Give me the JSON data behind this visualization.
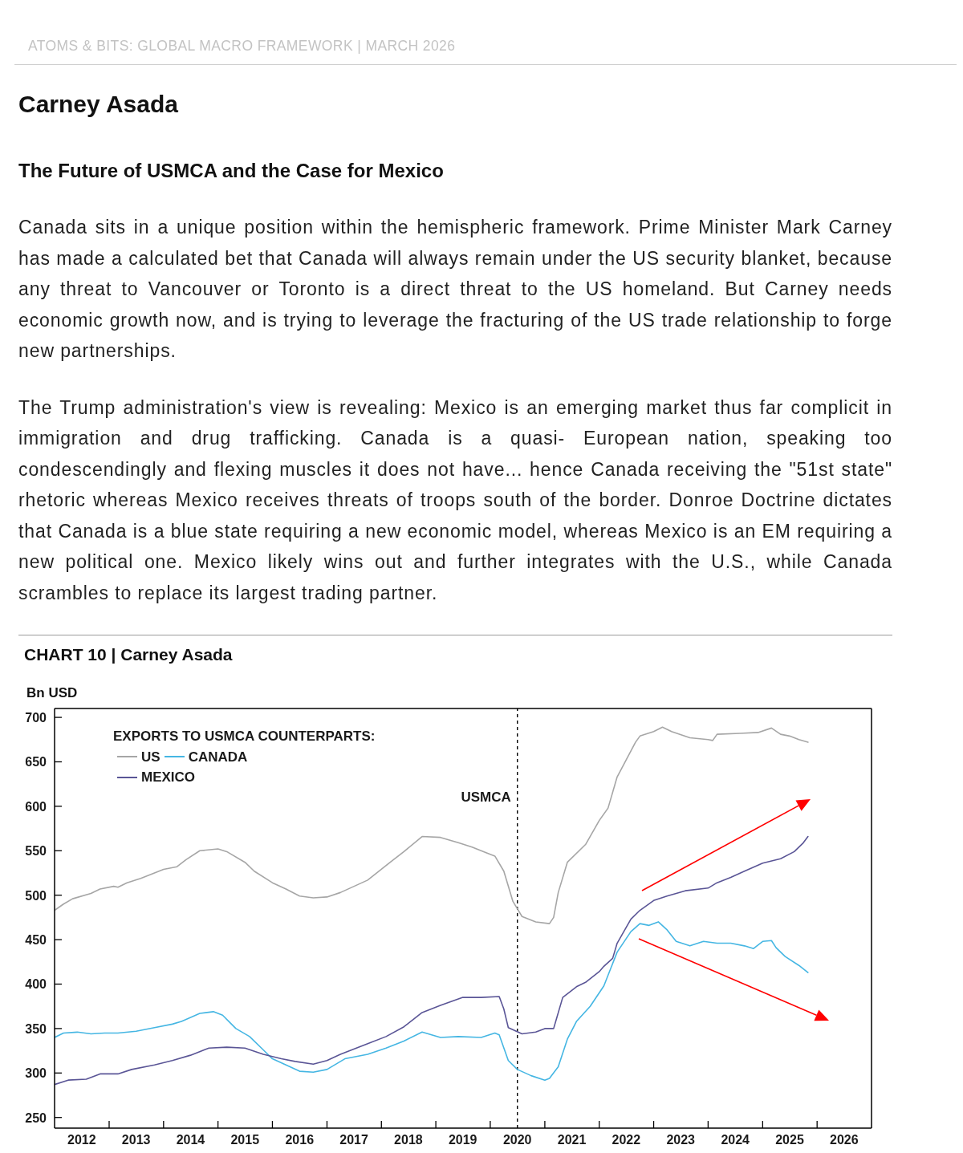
{
  "chart_data": {
    "type": "line",
    "title": "Carney Asada",
    "subtitle": "The Future of USMCA and the Case for Mexico",
    "annotations": [
      "ATOMS & BITS: GLOBAL MACRO FRAMEWORK | MARCH 2026",
      "Canada sits in a unique position within the hemispheric framework. Prime Minister Mark Carney has made a calculated bet that Canada will always remain under the US security blanket, because any threat to Vancouver or Toronto is a direct threat to the US homeland. But Carney needs economic growth now, and is trying to leverage the fracturing of the US trade relationship to forge new partnerships.",
      "The Trump administration's view is revealing: Mexico is an emerging market thus far complicit in immigration and drug trafficking. Canada is a quasi- European nation, speaking too condescendingly and flexing muscles it does not have... hence Canada receiving the \"51st state\" rhetoric whereas Mexico receives threats of troops south of the border. Donroe Doctrine dictates that Canada is a blue state requiring a new economic model, whereas Mexico is an EM requiring a new political one. Mexico likely wins out and further integrates with the U.S., while Canada scrambles to replace its largest trading partner.",
      "CHART 10 | Carney Asada"
    ],
    "ylabel": "Bn USD",
    "legend_title": "EXPORTS TO USMCA COUNTERPARTS:",
    "legend": "top left",
    "xlim": [
      "2012-01",
      "2027-01"
    ],
    "xticks": [
      {
        "value": "2012-07",
        "label": "2012"
      },
      {
        "value": "2013-01",
        "label": null
      },
      {
        "value": "2013-07",
        "label": "2013"
      },
      {
        "value": "2014-01",
        "label": null
      },
      {
        "value": "2014-07",
        "label": "2014"
      },
      {
        "value": "2015-01",
        "label": null
      },
      {
        "value": "2015-07",
        "label": "2015"
      },
      {
        "value": "2016-01",
        "label": null
      },
      {
        "value": "2016-07",
        "label": "2016"
      },
      {
        "value": "2017-01",
        "label": null
      },
      {
        "value": "2017-07",
        "label": "2017"
      },
      {
        "value": "2018-01",
        "label": null
      },
      {
        "value": "2018-07",
        "label": "2018"
      },
      {
        "value": "2019-01",
        "label": null
      },
      {
        "value": "2019-07",
        "label": "2019"
      },
      {
        "value": "2020-01",
        "label": null
      },
      {
        "value": "2020-07",
        "label": "2020"
      },
      {
        "value": "2021-01",
        "label": null
      },
      {
        "value": "2021-07",
        "label": "2021"
      },
      {
        "value": "2022-01",
        "label": null
      },
      {
        "value": "2022-07",
        "label": "2022"
      },
      {
        "value": "2023-01",
        "label": null
      },
      {
        "value": "2023-07",
        "label": "2023"
      },
      {
        "value": "2024-01",
        "label": null
      },
      {
        "value": "2024-07",
        "label": "2024"
      },
      {
        "value": "2025-01",
        "label": null
      },
      {
        "value": "2025-07",
        "label": "2025"
      },
      {
        "value": "2026-01",
        "label": null
      },
      {
        "value": "2026-07",
        "label": "2026"
      }
    ],
    "ylim": [
      238,
      710
    ],
    "yticks": [
      250,
      300,
      350,
      400,
      450,
      500,
      550,
      600,
      650,
      700
    ],
    "ref_lines": [
      {
        "axis": "x",
        "value": "2020-07",
        "label": "USMCA",
        "color": "#000000",
        "line_style": "dashed"
      }
    ],
    "series": [
      {
        "name": "US",
        "color": "#a6a6a6",
        "x": [
          "2012-01",
          "2012-03",
          "2012-05",
          "2012-09",
          "2012-11",
          "2013-02",
          "2013-03",
          "2013-05",
          "2013-08",
          "2013-11",
          "2014-01",
          "2014-04",
          "2014-06",
          "2014-09",
          "2015-01",
          "2015-03",
          "2015-07",
          "2015-09",
          "2016-01",
          "2016-04",
          "2016-07",
          "2016-10",
          "2017-01",
          "2017-04",
          "2017-10",
          "2018-03",
          "2018-06",
          "2018-10",
          "2019-02",
          "2019-06",
          "2019-09",
          "2019-12",
          "2020-02",
          "2020-04",
          "2020-06",
          "2020-08",
          "2020-11",
          "2021-02",
          "2021-03",
          "2021-04",
          "2021-06",
          "2021-10",
          "2022-01",
          "2022-03",
          "2022-05",
          "2022-09",
          "2022-10",
          "2023-01",
          "2023-03",
          "2023-05",
          "2023-09",
          "2024-01",
          "2024-02",
          "2024-03",
          "2024-08",
          "2024-12",
          "2025-03",
          "2025-05",
          "2025-07",
          "2025-09",
          "2025-11"
        ],
        "values": [
          483,
          490,
          496,
          502,
          507,
          510,
          509,
          514,
          519,
          525,
          529,
          532,
          540,
          550,
          552,
          549,
          537,
          527,
          514,
          507,
          499,
          497,
          498,
          503,
          517,
          537,
          549,
          566,
          565,
          559,
          554,
          548,
          544,
          527,
          493,
          476,
          470,
          468,
          475,
          503,
          537,
          557,
          584,
          598,
          633,
          672,
          679,
          684,
          689,
          684,
          677,
          675,
          674,
          681,
          682,
          683,
          688,
          681,
          679,
          675,
          672
        ]
      },
      {
        "name": "CANADA",
        "color": "#45b6e3",
        "x": [
          "2012-01",
          "2012-03",
          "2012-06",
          "2012-09",
          "2012-12",
          "2013-03",
          "2013-07",
          "2013-11",
          "2014-03",
          "2014-05",
          "2014-09",
          "2014-12",
          "2015-02",
          "2015-05",
          "2015-08",
          "2015-11",
          "2016-01",
          "2016-04",
          "2016-07",
          "2016-10",
          "2017-01",
          "2017-05",
          "2017-10",
          "2018-02",
          "2018-06",
          "2018-10",
          "2019-02",
          "2019-06",
          "2019-11",
          "2020-02",
          "2020-03",
          "2020-05",
          "2020-07",
          "2020-10",
          "2021-01",
          "2021-02",
          "2021-04",
          "2021-06",
          "2021-08",
          "2021-11",
          "2022-02",
          "2022-05",
          "2022-08",
          "2022-10",
          "2022-12",
          "2023-02",
          "2023-04",
          "2023-06",
          "2023-09",
          "2023-12",
          "2024-03",
          "2024-06",
          "2024-09",
          "2024-11",
          "2025-01",
          "2025-03",
          "2025-04",
          "2025-06",
          "2025-09",
          "2025-11"
        ],
        "values": [
          340,
          345,
          346,
          344,
          345,
          345,
          347,
          351,
          355,
          358,
          367,
          369,
          365,
          350,
          341,
          326,
          316,
          309,
          302,
          301,
          304,
          316,
          321,
          328,
          336,
          346,
          340,
          341,
          340,
          345,
          343,
          314,
          304,
          297,
          292,
          294,
          307,
          338,
          358,
          375,
          398,
          436,
          459,
          468,
          466,
          470,
          461,
          448,
          443,
          448,
          446,
          446,
          443,
          440,
          448,
          449,
          441,
          431,
          421,
          413
        ]
      },
      {
        "name": "MEXICO",
        "color": "#5a5596",
        "x": [
          "2012-01",
          "2012-04",
          "2012-08",
          "2012-11",
          "2013-03",
          "2013-06",
          "2013-11",
          "2014-03",
          "2014-07",
          "2014-11",
          "2015-03",
          "2015-07",
          "2015-11",
          "2016-03",
          "2016-06",
          "2016-10",
          "2017-01",
          "2017-04",
          "2017-10",
          "2018-02",
          "2018-06",
          "2018-10",
          "2019-02",
          "2019-07",
          "2019-11",
          "2020-03",
          "2020-04",
          "2020-05",
          "2020-08",
          "2020-11",
          "2021-01",
          "2021-03",
          "2021-05",
          "2021-08",
          "2021-10",
          "2022-01",
          "2022-02",
          "2022-04",
          "2022-05",
          "2022-08",
          "2022-10",
          "2023-01",
          "2023-04",
          "2023-08",
          "2024-01",
          "2024-03",
          "2024-06",
          "2024-09",
          "2025-01",
          "2025-05",
          "2025-08",
          "2025-10",
          "2025-11"
        ],
        "values": [
          287,
          292,
          293,
          299,
          299,
          304,
          309,
          314,
          320,
          328,
          329,
          328,
          321,
          316,
          313,
          310,
          314,
          321,
          333,
          341,
          352,
          368,
          376,
          385,
          385,
          386,
          372,
          351,
          344,
          346,
          350,
          350,
          385,
          397,
          402,
          414,
          420,
          429,
          446,
          473,
          483,
          494,
          499,
          505,
          508,
          514,
          520,
          527,
          536,
          541,
          549,
          559,
          566
        ]
      }
    ]
  }
}
